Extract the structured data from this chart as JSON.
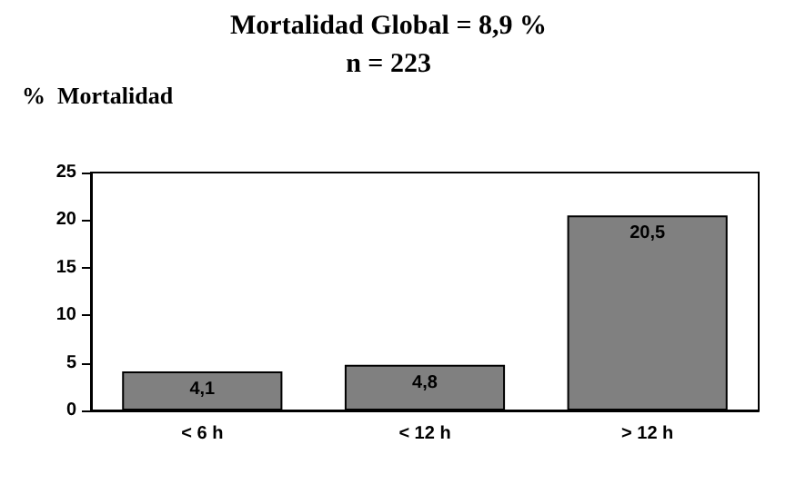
{
  "chart_data": {
    "type": "bar",
    "title": "Mortalidad Global = 8,9 %",
    "subtitle": "n = 223",
    "ylabel": "%  Mortalidad",
    "categories": [
      "< 6 h",
      "< 12 h",
      "> 12 h"
    ],
    "values": [
      4.1,
      4.8,
      20.5
    ],
    "value_labels": [
      "4,1",
      "4,8",
      "20,5"
    ],
    "color": "#808080",
    "ylim": [
      0,
      25
    ],
    "yticks": [
      0,
      5,
      10,
      15,
      20,
      25
    ],
    "grid": false
  }
}
